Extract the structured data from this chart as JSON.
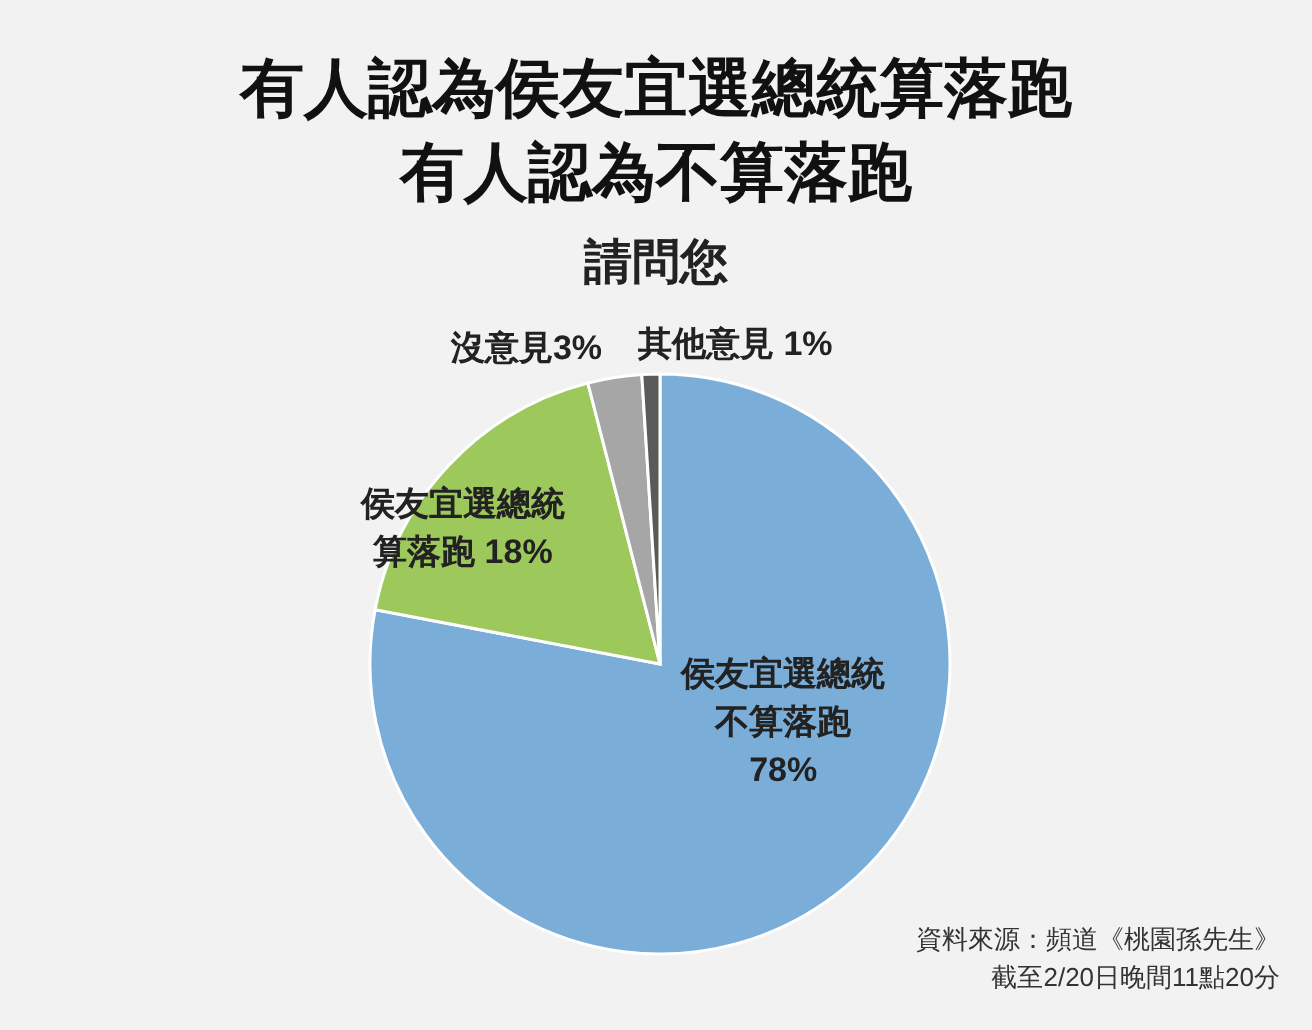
{
  "chart_data": {
    "type": "pie",
    "title": "有人認為侯友宜選總統算落跑有人認為不算落跑",
    "subtitle": "請問您",
    "categories": [
      "侯友宜選總統不算落跑",
      "侯友宜選總統算落跑",
      "沒意見",
      "其他意見"
    ],
    "values": [
      78,
      18,
      3,
      1
    ],
    "colors": [
      "#7aaed9",
      "#9dc95c",
      "#a6a6a6",
      "#5a5a5a"
    ],
    "value_labels": [
      "78%",
      "18%",
      "3%",
      "1%"
    ],
    "annotations": [
      "資料來源：頻道《桃園孫先生》",
      "截至2/20日晚間11點20分"
    ]
  }
}
